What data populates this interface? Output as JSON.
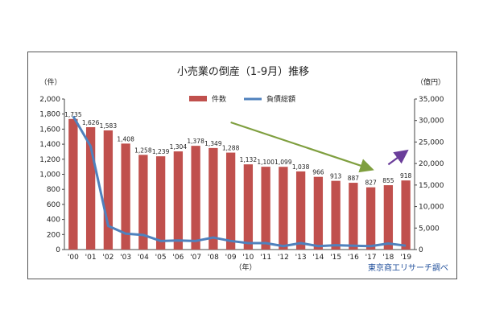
{
  "chart_data": {
    "type": "bar",
    "title": "小売業の倒産（1-9月）推移",
    "left_unit": "（件）",
    "right_unit": "（億円）",
    "x_unit": "（年）",
    "source": "東京商工リサーチ調べ",
    "categories": [
      "'00",
      "'01",
      "'02",
      "'03",
      "'04",
      "'05",
      "'06",
      "'07",
      "'08",
      "'09",
      "'10",
      "'11",
      "'12",
      "'13",
      "'14",
      "'15",
      "'16",
      "'17",
      "'18",
      "'19"
    ],
    "ylim": [
      0,
      2000
    ],
    "y2lim": [
      0,
      35000
    ],
    "yticks": [
      "0",
      "200",
      "400",
      "600",
      "800",
      "1,000",
      "1,200",
      "1,400",
      "1,600",
      "1,800",
      "2,000"
    ],
    "y2ticks": [
      "0",
      "5,000",
      "10,000",
      "15,000",
      "20,000",
      "25,000",
      "30,000",
      "35,000"
    ],
    "series": [
      {
        "name": "件数",
        "type": "bar",
        "axis": "left",
        "color": "#c0504d",
        "values": [
          1735,
          1626,
          1583,
          1408,
          1258,
          1239,
          1304,
          1378,
          1349,
          1288,
          1132,
          1100,
          1099,
          1038,
          966,
          913,
          887,
          827,
          855,
          918
        ],
        "labels": [
          "1,735",
          "1,626",
          "1,583",
          "1,408",
          "1,258",
          "1,239",
          "1,304",
          "1,378",
          "1,349",
          "1,288",
          "1,132",
          "1,100",
          "1,099",
          "1,038",
          "966",
          "913",
          "887",
          "827",
          "855",
          "918"
        ]
      },
      {
        "name": "負債総額",
        "type": "line",
        "axis": "right",
        "color": "#4f81bd",
        "values": [
          31000,
          24000,
          5500,
          3700,
          3400,
          2000,
          2100,
          2000,
          2800,
          2000,
          1500,
          1500,
          800,
          1500,
          800,
          1000,
          900,
          800,
          1400,
          900
        ]
      }
    ],
    "legend": "top-center",
    "annotations": [
      {
        "type": "arrow",
        "color": "#7f9f3f",
        "from_x": "'09",
        "from_y": 1690,
        "to_x": "'17",
        "to_y": 1070
      },
      {
        "type": "arrow",
        "color": "#6a3d9a",
        "from_x": "'18",
        "from_y": 1130,
        "to_x": "'19",
        "to_y": 1300
      }
    ]
  }
}
